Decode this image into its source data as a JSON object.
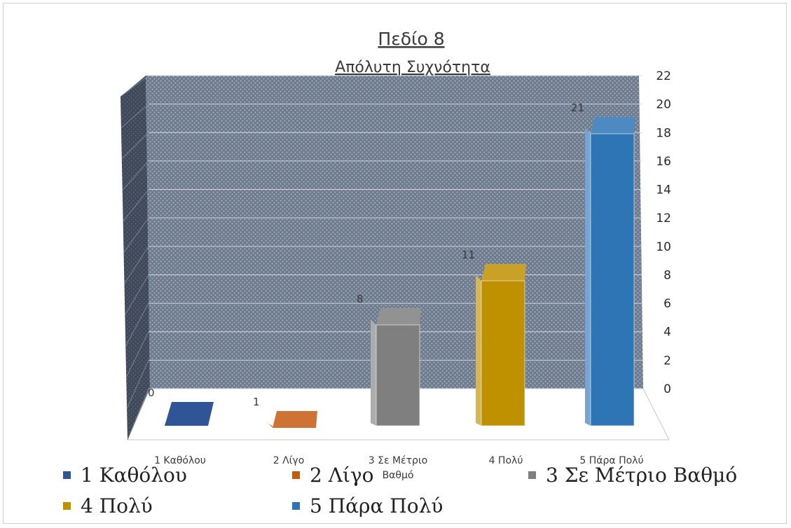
{
  "chart_data": {
    "type": "bar",
    "title": "Πεδίο 8",
    "subtitle": "Απόλυτη Συχνότητα",
    "categories": [
      "1 Καθόλου",
      "2 Λίγο",
      "3 Σε Μέτριο Βαθμό",
      "4 Πολύ",
      "5 Πάρα Πολύ"
    ],
    "category_labels": [
      [
        "1 Καθόλου"
      ],
      [
        "2 Λίγο"
      ],
      [
        "3 Σε Μέτριο",
        "Βαθμό"
      ],
      [
        "4 Πολύ"
      ],
      [
        "5 Πάρα Πολύ"
      ]
    ],
    "values": [
      0,
      1,
      8,
      11,
      21
    ],
    "value_labels": [
      "0",
      "1",
      "8",
      "11",
      "21"
    ],
    "colors": [
      "#2f5597",
      "#c55a11",
      "#7f7f7f",
      "#bf9000",
      "#2e75b6"
    ],
    "ylim": [
      0,
      22
    ],
    "yticks": [
      "0",
      "2",
      "4",
      "6",
      "8",
      "10",
      "12",
      "14",
      "16",
      "18",
      "20",
      "22"
    ],
    "grid": true,
    "legend_position": "bottom",
    "legend": [
      "1 Καθόλου",
      "2 Λίγο",
      "3 Σε Μέτριο Βαθμό",
      "4 Πολύ",
      "5 Πάρα Πολύ"
    ]
  }
}
